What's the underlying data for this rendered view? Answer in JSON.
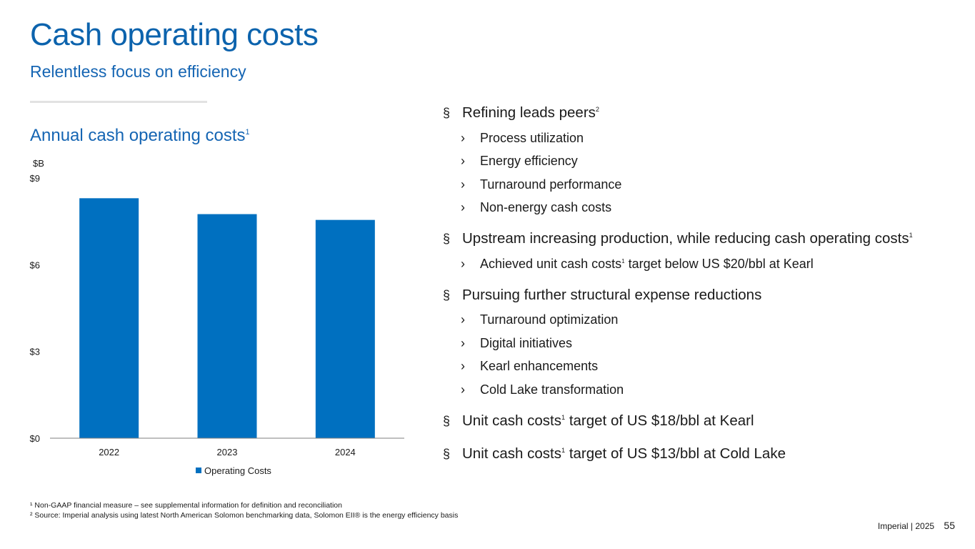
{
  "header": {
    "title": "Cash operating costs",
    "subtitle": "Relentless focus on efficiency"
  },
  "chart_title": {
    "text": "Annual cash operating costs",
    "sup": "1"
  },
  "chart_data": {
    "type": "bar",
    "ylabel": "$B",
    "categories": [
      "2022",
      "2023",
      "2024"
    ],
    "series": [
      {
        "name": "Operating Costs",
        "values": [
          8.3,
          7.75,
          7.55
        ]
      }
    ],
    "ylim": [
      0,
      9
    ],
    "yticks": [
      0,
      3,
      6,
      9
    ],
    "ytick_labels": [
      "$0",
      "$3",
      "$6",
      "$9"
    ],
    "grid": false,
    "legend_position": "bottom",
    "color": "#0070c0"
  },
  "bullets": {
    "mark": "§",
    "arrow": "›",
    "b1": {
      "text": "Refining leads peers",
      "sup": "2"
    },
    "b1_subs": [
      "Process utilization",
      "Energy efficiency",
      "Turnaround performance",
      "Non-energy cash costs"
    ],
    "b2": {
      "text": "Upstream increasing production, while reducing cash operating costs",
      "sup": "1"
    },
    "b2_sub": {
      "pre": "Achieved unit cash costs",
      "sup": "1",
      "post": " target below US $20/bbl at Kearl"
    },
    "b3": {
      "text": "Pursuing further structural expense reductions"
    },
    "b3_subs": [
      "Turnaround optimization",
      "Digital initiatives",
      "Kearl enhancements",
      "Cold Lake transformation"
    ],
    "b4": {
      "pre": "Unit cash costs",
      "sup": "1",
      "post": " target of US $18/bbl at Kearl"
    },
    "b5": {
      "pre": "Unit cash costs",
      "sup": "1",
      "post": " target of US $13/bbl at Cold Lake"
    }
  },
  "footnotes": {
    "n1": "¹ Non-GAAP financial measure – see supplemental information for definition and reconciliation",
    "n2": "² Source: Imperial analysis using latest North American Solomon benchmarking data, Solomon EII® is the energy efficiency basis"
  },
  "footer": {
    "company": "Imperial",
    "sep": "|",
    "year": "2025",
    "page": "55"
  }
}
